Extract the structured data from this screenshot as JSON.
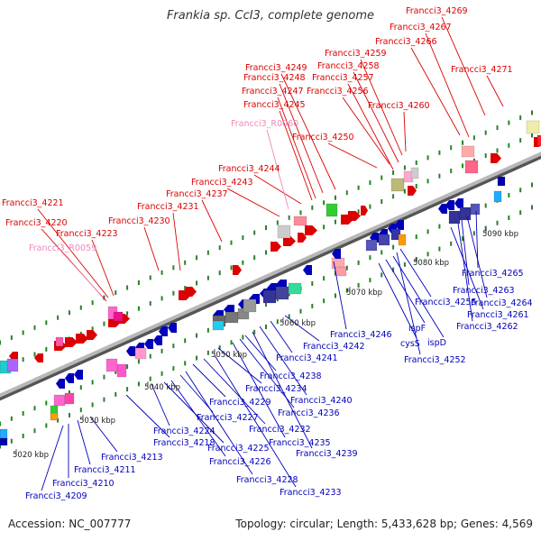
{
  "title": "Frankia sp. CcI3, complete genome",
  "footer": {
    "accession": "Accession: NC_007777",
    "info": "Topology: circular; Length: 5,433,628 bp; Genes: 4,569"
  },
  "colors": {
    "plus_strand": "#dd0000",
    "minus_strand": "#0000bb",
    "rna": "#ee88bb",
    "backbone": "#999999"
  },
  "scale": {
    "ticks": [
      "5020 kbp",
      "5030 kbp",
      "5040 kbp",
      "5050 kbp",
      "5060 kbp",
      "5070 kbp",
      "5080 kbp",
      "5090 kbp"
    ]
  },
  "labels_top": [
    "Francci3_4221",
    "Francci3_4220",
    "Francci3_R0059",
    "Francci3_4223",
    "Francci3_4230",
    "Francci3_4231",
    "Francci3_4237",
    "Francci3_4243",
    "Francci3_4244",
    "Francci3_R0060",
    "Francci3_4245",
    "Francci3_4247",
    "Francci3_4248",
    "Francci3_4249",
    "Francci3_4250",
    "Francci3_4256",
    "Francci3_4257",
    "Francci3_4258",
    "Francci3_4259",
    "Francci3_4260",
    "Francci3_4266",
    "Francci3_4267",
    "Francci3_4269",
    "Francci3_4271"
  ],
  "labels_bottom": [
    "Francci3_4209",
    "Francci3_4210",
    "Francci3_4211",
    "Francci3_4213",
    "Francci3_4218",
    "Francci3_4224",
    "Francci3_4225",
    "Francci3_4226",
    "Francci3_4227",
    "Francci3_4228",
    "Francci3_4229",
    "Francci3_4232",
    "Francci3_4233",
    "Francci3_4234",
    "Francci3_4235",
    "Francci3_4236",
    "Francci3_4238",
    "Francci3_4239",
    "Francci3_4240",
    "Francci3_4241",
    "Francci3_4242",
    "Francci3_4246",
    "cysS",
    "ispF",
    "ispD",
    "Francci3_4252",
    "Francci3_4255",
    "Francci3_4261",
    "Francci3_4262",
    "Francci3_4263",
    "Francci3_4264",
    "Francci3_4265"
  ]
}
